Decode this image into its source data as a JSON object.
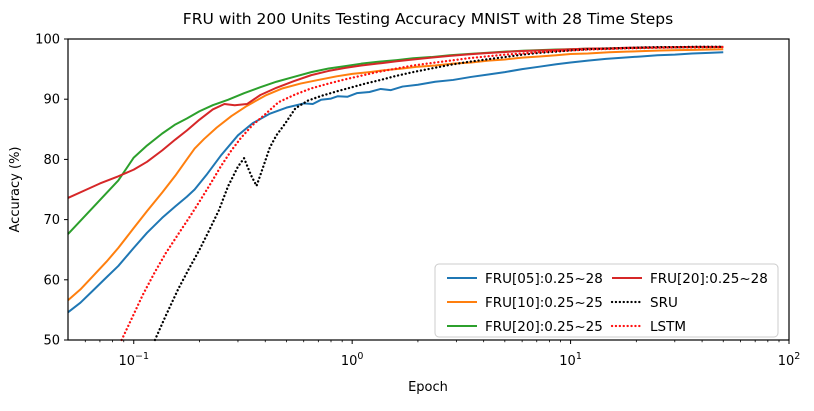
{
  "title": "FRU with 200 Units Testing Accuracy MNIST with 28 Time Steps",
  "chart_data": {
    "type": "line",
    "title": "FRU with 200 Units Testing Accuracy MNIST with 28 Time Steps",
    "xlabel": "Epoch",
    "ylabel": "Accuracy (%)",
    "x_scale": "log",
    "xlim": [
      0.05,
      100
    ],
    "ylim": [
      50,
      100
    ],
    "grid": false,
    "legend_position": "lower right",
    "y_ticks": [
      50,
      60,
      70,
      80,
      90,
      100
    ],
    "x_ticks": [
      {
        "value": 0.1,
        "base": "10",
        "exp": "−1"
      },
      {
        "value": 1,
        "base": "10",
        "exp": "0"
      },
      {
        "value": 10,
        "base": "10",
        "exp": "1"
      },
      {
        "value": 100,
        "base": "10",
        "exp": "2"
      }
    ],
    "colors": {
      "blue": "#1f77b4",
      "orange": "#ff7f0e",
      "green": "#2ca02c",
      "red": "#d62728",
      "black": "#000000",
      "bright_red": "#ff1111"
    },
    "series": [
      {
        "name": "FRU[05]:0.25~28",
        "color": "#1f77b4",
        "style": "solid",
        "points": [
          [
            0.05,
            54.6
          ],
          [
            0.057,
            56.2
          ],
          [
            0.065,
            58.2
          ],
          [
            0.075,
            60.4
          ],
          [
            0.085,
            62.3
          ],
          [
            0.1,
            65.3
          ],
          [
            0.115,
            67.8
          ],
          [
            0.135,
            70.3
          ],
          [
            0.155,
            72.2
          ],
          [
            0.175,
            73.8
          ],
          [
            0.19,
            75.0
          ],
          [
            0.215,
            77.4
          ],
          [
            0.25,
            80.6
          ],
          [
            0.3,
            84.0
          ],
          [
            0.35,
            86.0
          ],
          [
            0.42,
            87.6
          ],
          [
            0.5,
            88.6
          ],
          [
            0.6,
            89.3
          ],
          [
            0.66,
            89.2
          ],
          [
            0.72,
            89.9
          ],
          [
            0.8,
            90.1
          ],
          [
            0.86,
            90.5
          ],
          [
            0.95,
            90.4
          ],
          [
            1.05,
            91.0
          ],
          [
            1.2,
            91.2
          ],
          [
            1.35,
            91.7
          ],
          [
            1.5,
            91.5
          ],
          [
            1.7,
            92.1
          ],
          [
            2.0,
            92.4
          ],
          [
            2.4,
            92.9
          ],
          [
            2.9,
            93.2
          ],
          [
            3.5,
            93.7
          ],
          [
            4.2,
            94.1
          ],
          [
            5.0,
            94.5
          ],
          [
            6.0,
            95.0
          ],
          [
            7.2,
            95.4
          ],
          [
            8.6,
            95.8
          ],
          [
            10,
            96.1
          ],
          [
            12,
            96.4
          ],
          [
            14.5,
            96.7
          ],
          [
            17.5,
            96.9
          ],
          [
            21,
            97.1
          ],
          [
            25,
            97.3
          ],
          [
            30,
            97.4
          ],
          [
            36,
            97.6
          ],
          [
            43,
            97.7
          ],
          [
            50,
            97.8
          ]
        ]
      },
      {
        "name": "FRU[10]:0.25~25",
        "color": "#ff7f0e",
        "style": "solid",
        "points": [
          [
            0.05,
            56.6
          ],
          [
            0.057,
            58.4
          ],
          [
            0.065,
            60.6
          ],
          [
            0.075,
            63.0
          ],
          [
            0.085,
            65.3
          ],
          [
            0.1,
            68.6
          ],
          [
            0.115,
            71.4
          ],
          [
            0.135,
            74.5
          ],
          [
            0.155,
            77.3
          ],
          [
            0.175,
            80.0
          ],
          [
            0.19,
            81.8
          ],
          [
            0.21,
            83.4
          ],
          [
            0.24,
            85.3
          ],
          [
            0.28,
            87.2
          ],
          [
            0.33,
            88.9
          ],
          [
            0.4,
            90.6
          ],
          [
            0.48,
            91.8
          ],
          [
            0.58,
            92.6
          ],
          [
            0.7,
            93.2
          ],
          [
            0.85,
            93.8
          ],
          [
            1.0,
            94.2
          ],
          [
            1.2,
            94.5
          ],
          [
            1.4,
            94.8
          ],
          [
            1.7,
            95.1
          ],
          [
            2.0,
            95.4
          ],
          [
            2.4,
            95.6
          ],
          [
            2.9,
            95.9
          ],
          [
            3.5,
            96.1
          ],
          [
            4.2,
            96.4
          ],
          [
            5.0,
            96.6
          ],
          [
            6.0,
            96.9
          ],
          [
            7.2,
            97.1
          ],
          [
            8.6,
            97.3
          ],
          [
            10,
            97.5
          ],
          [
            12,
            97.6
          ],
          [
            15,
            97.8
          ],
          [
            18,
            97.9
          ],
          [
            22,
            98.0
          ],
          [
            26,
            98.1
          ],
          [
            31,
            98.15
          ],
          [
            37,
            98.2
          ],
          [
            44,
            98.25
          ],
          [
            50,
            98.3
          ]
        ]
      },
      {
        "name": "FRU[20]:0.25~25",
        "color": "#2ca02c",
        "style": "solid",
        "points": [
          [
            0.05,
            67.6
          ],
          [
            0.057,
            69.8
          ],
          [
            0.065,
            72.0
          ],
          [
            0.075,
            74.4
          ],
          [
            0.085,
            76.5
          ],
          [
            0.1,
            80.3
          ],
          [
            0.115,
            82.3
          ],
          [
            0.135,
            84.3
          ],
          [
            0.155,
            85.8
          ],
          [
            0.175,
            86.8
          ],
          [
            0.2,
            88.0
          ],
          [
            0.23,
            89.0
          ],
          [
            0.27,
            89.9
          ],
          [
            0.32,
            91.0
          ],
          [
            0.38,
            92.0
          ],
          [
            0.45,
            92.9
          ],
          [
            0.54,
            93.7
          ],
          [
            0.65,
            94.5
          ],
          [
            0.78,
            95.1
          ],
          [
            0.93,
            95.5
          ],
          [
            1.1,
            95.9
          ],
          [
            1.3,
            96.2
          ],
          [
            1.6,
            96.5
          ],
          [
            1.9,
            96.8
          ],
          [
            2.3,
            97.0
          ],
          [
            2.8,
            97.3
          ],
          [
            3.4,
            97.5
          ],
          [
            4.1,
            97.7
          ],
          [
            5.0,
            97.9
          ],
          [
            6.0,
            98.05
          ],
          [
            7.2,
            98.15
          ],
          [
            8.6,
            98.25
          ],
          [
            10,
            98.3
          ],
          [
            12,
            98.4
          ],
          [
            15,
            98.45
          ],
          [
            18,
            98.5
          ],
          [
            22,
            98.55
          ],
          [
            26,
            98.6
          ],
          [
            31,
            98.6
          ],
          [
            37,
            98.65
          ],
          [
            44,
            98.65
          ],
          [
            50,
            98.7
          ]
        ]
      },
      {
        "name": "FRU[20]:0.25~28",
        "color": "#d62728",
        "style": "solid",
        "points": [
          [
            0.05,
            73.6
          ],
          [
            0.06,
            74.9
          ],
          [
            0.07,
            76.0
          ],
          [
            0.085,
            77.2
          ],
          [
            0.1,
            78.3
          ],
          [
            0.115,
            79.6
          ],
          [
            0.135,
            81.5
          ],
          [
            0.155,
            83.3
          ],
          [
            0.175,
            84.8
          ],
          [
            0.2,
            86.6
          ],
          [
            0.23,
            88.3
          ],
          [
            0.26,
            89.2
          ],
          [
            0.29,
            89.0
          ],
          [
            0.33,
            89.2
          ],
          [
            0.38,
            90.7
          ],
          [
            0.45,
            91.9
          ],
          [
            0.54,
            93.0
          ],
          [
            0.65,
            94.0
          ],
          [
            0.78,
            94.7
          ],
          [
            0.93,
            95.2
          ],
          [
            1.1,
            95.6
          ],
          [
            1.3,
            95.9
          ],
          [
            1.6,
            96.3
          ],
          [
            1.9,
            96.6
          ],
          [
            2.3,
            96.9
          ],
          [
            2.8,
            97.2
          ],
          [
            3.4,
            97.45
          ],
          [
            4.1,
            97.65
          ],
          [
            5.0,
            97.85
          ],
          [
            6.0,
            98.0
          ],
          [
            7.2,
            98.1
          ],
          [
            8.6,
            98.2
          ],
          [
            10,
            98.3
          ],
          [
            12,
            98.4
          ],
          [
            15,
            98.45
          ],
          [
            18,
            98.55
          ],
          [
            22,
            98.6
          ],
          [
            26,
            98.6
          ],
          [
            31,
            98.65
          ],
          [
            37,
            98.7
          ],
          [
            44,
            98.7
          ],
          [
            50,
            98.7
          ]
        ]
      },
      {
        "name": "SRU",
        "color": "#000000",
        "style": "dotted",
        "points": [
          [
            0.125,
            50.0
          ],
          [
            0.14,
            54.0
          ],
          [
            0.16,
            58.5
          ],
          [
            0.18,
            62.0
          ],
          [
            0.2,
            65.0
          ],
          [
            0.22,
            68.0
          ],
          [
            0.245,
            71.5
          ],
          [
            0.27,
            75.5
          ],
          [
            0.3,
            78.8
          ],
          [
            0.32,
            80.2
          ],
          [
            0.345,
            77.3
          ],
          [
            0.365,
            75.6
          ],
          [
            0.39,
            78.6
          ],
          [
            0.42,
            82.0
          ],
          [
            0.45,
            84.0
          ],
          [
            0.49,
            85.8
          ],
          [
            0.55,
            88.5
          ],
          [
            0.63,
            89.8
          ],
          [
            0.73,
            90.6
          ],
          [
            0.85,
            91.3
          ],
          [
            1.0,
            92.0
          ],
          [
            1.15,
            92.6
          ],
          [
            1.35,
            93.2
          ],
          [
            1.6,
            93.9
          ],
          [
            1.9,
            94.5
          ],
          [
            2.3,
            95.1
          ],
          [
            2.8,
            95.7
          ],
          [
            3.4,
            96.2
          ],
          [
            4.1,
            96.6
          ],
          [
            5.0,
            97.0
          ],
          [
            6.0,
            97.4
          ],
          [
            7.2,
            97.7
          ],
          [
            8.6,
            97.9
          ],
          [
            10,
            98.1
          ],
          [
            12,
            98.3
          ],
          [
            15,
            98.4
          ],
          [
            18,
            98.5
          ],
          [
            22,
            98.6
          ],
          [
            26,
            98.65
          ],
          [
            31,
            98.65
          ],
          [
            37,
            98.7
          ],
          [
            44,
            98.7
          ],
          [
            50,
            98.7
          ]
        ]
      },
      {
        "name": "LSTM",
        "color": "#ff1111",
        "style": "dotted",
        "points": [
          [
            0.088,
            50.0
          ],
          [
            0.098,
            53.6
          ],
          [
            0.11,
            57.5
          ],
          [
            0.125,
            61.3
          ],
          [
            0.14,
            64.4
          ],
          [
            0.16,
            67.6
          ],
          [
            0.18,
            70.4
          ],
          [
            0.2,
            73.0
          ],
          [
            0.225,
            76.0
          ],
          [
            0.25,
            78.8
          ],
          [
            0.28,
            81.5
          ],
          [
            0.31,
            83.6
          ],
          [
            0.35,
            85.7
          ],
          [
            0.4,
            87.5
          ],
          [
            0.46,
            89.5
          ],
          [
            0.55,
            90.8
          ],
          [
            0.65,
            91.8
          ],
          [
            0.78,
            92.6
          ],
          [
            0.93,
            93.3
          ],
          [
            1.1,
            93.9
          ],
          [
            1.3,
            94.5
          ],
          [
            1.6,
            95.1
          ],
          [
            1.9,
            95.6
          ],
          [
            2.3,
            96.0
          ],
          [
            2.8,
            96.4
          ],
          [
            3.4,
            96.8
          ],
          [
            4.1,
            97.1
          ],
          [
            5.0,
            97.4
          ],
          [
            6.0,
            97.6
          ],
          [
            7.2,
            97.8
          ],
          [
            8.6,
            98.0
          ],
          [
            10,
            98.1
          ],
          [
            12,
            98.25
          ],
          [
            15,
            98.35
          ],
          [
            18,
            98.45
          ],
          [
            22,
            98.5
          ],
          [
            26,
            98.55
          ],
          [
            31,
            98.6
          ],
          [
            37,
            98.6
          ],
          [
            44,
            98.65
          ],
          [
            50,
            98.65
          ]
        ]
      }
    ],
    "legend_columns": [
      [
        0,
        1,
        2
      ],
      [
        3,
        4,
        5
      ]
    ]
  }
}
